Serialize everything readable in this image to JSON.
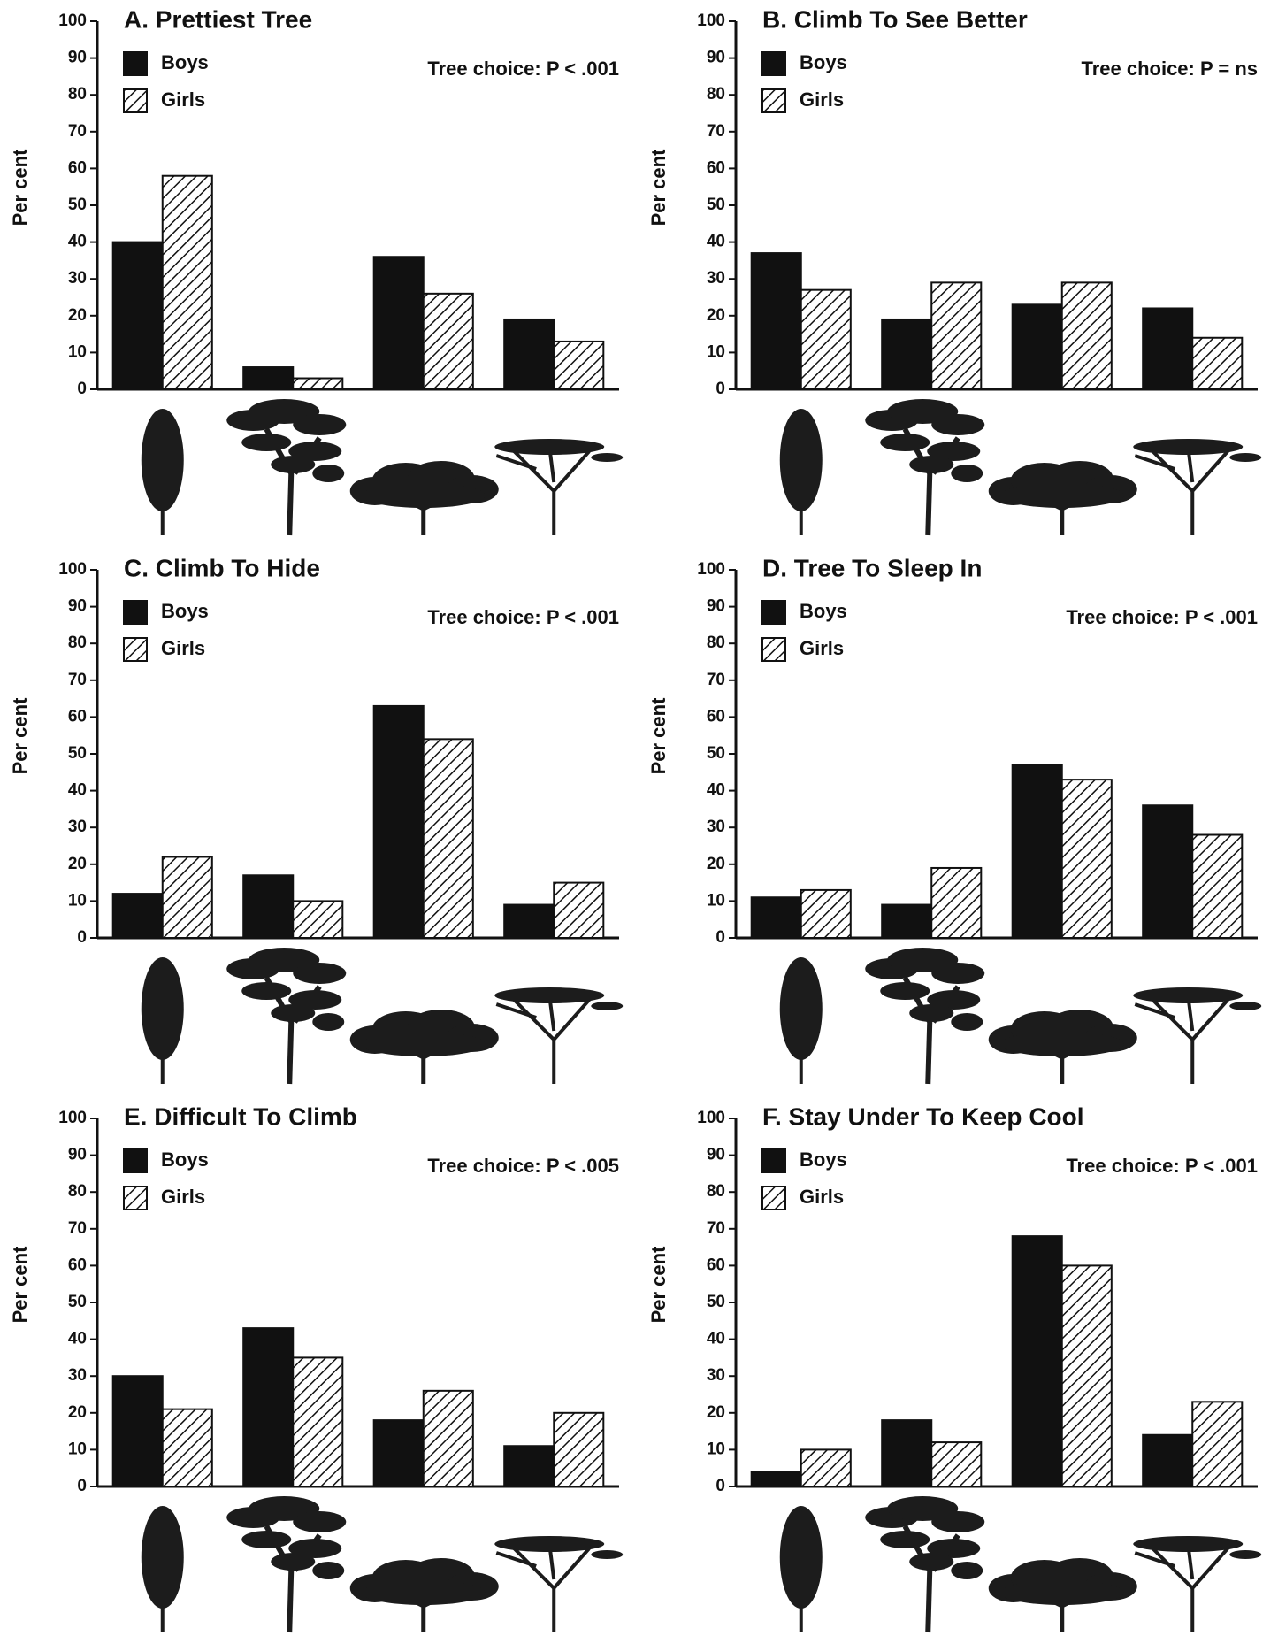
{
  "chart_data": [
    {
      "type": "bar",
      "title": "A.  Prettiest  Tree",
      "annotation": "Tree choice: P < .001",
      "ylabel": "Per cent",
      "categories": [
        null,
        null,
        null,
        null
      ],
      "series": [
        {
          "name": "Boys",
          "color": "#111111",
          "hatch": false,
          "values": [
            40,
            6,
            36,
            19
          ]
        },
        {
          "name": "Girls",
          "color": "#111111",
          "hatch": true,
          "values": [
            58,
            3,
            26,
            13
          ]
        }
      ],
      "ylim": [
        0,
        100
      ],
      "yticks": [
        0,
        10,
        20,
        30,
        40,
        50,
        60,
        70,
        80,
        90,
        100
      ],
      "grid": false
    },
    {
      "type": "bar",
      "title": "B.  Climb  To  See  Better",
      "annotation": "Tree choice: P = ns",
      "ylabel": "Per cent",
      "categories": [
        null,
        null,
        null,
        null
      ],
      "series": [
        {
          "name": "Boys",
          "color": "#111111",
          "hatch": false,
          "values": [
            37,
            19,
            23,
            22
          ]
        },
        {
          "name": "Girls",
          "color": "#111111",
          "hatch": true,
          "values": [
            27,
            29,
            29,
            14
          ]
        }
      ],
      "ylim": [
        0,
        100
      ],
      "yticks": [
        0,
        10,
        20,
        30,
        40,
        50,
        60,
        70,
        80,
        90,
        100
      ],
      "grid": false
    },
    {
      "type": "bar",
      "title": "C.  Climb  To  Hide",
      "annotation": "Tree choice: P < .001",
      "ylabel": "Per cent",
      "categories": [
        null,
        null,
        null,
        null
      ],
      "series": [
        {
          "name": "Boys",
          "color": "#111111",
          "hatch": false,
          "values": [
            12,
            17,
            63,
            9
          ]
        },
        {
          "name": "Girls",
          "color": "#111111",
          "hatch": true,
          "values": [
            22,
            10,
            54,
            15
          ]
        }
      ],
      "ylim": [
        0,
        100
      ],
      "yticks": [
        0,
        10,
        20,
        30,
        40,
        50,
        60,
        70,
        80,
        90,
        100
      ],
      "grid": false
    },
    {
      "type": "bar",
      "title": "D.  Tree  To  Sleep  In",
      "annotation": "Tree choice: P < .001",
      "ylabel": "Per cent",
      "categories": [
        null,
        null,
        null,
        null
      ],
      "series": [
        {
          "name": "Boys",
          "color": "#111111",
          "hatch": false,
          "values": [
            11,
            9,
            47,
            36
          ]
        },
        {
          "name": "Girls",
          "color": "#111111",
          "hatch": true,
          "values": [
            13,
            19,
            43,
            28
          ]
        }
      ],
      "ylim": [
        0,
        100
      ],
      "yticks": [
        0,
        10,
        20,
        30,
        40,
        50,
        60,
        70,
        80,
        90,
        100
      ],
      "grid": false
    },
    {
      "type": "bar",
      "title": "E.  Difficult  To  Climb",
      "annotation": "Tree choice: P < .005",
      "ylabel": "Per cent",
      "categories": [
        null,
        null,
        null,
        null
      ],
      "series": [
        {
          "name": "Boys",
          "color": "#111111",
          "hatch": false,
          "values": [
            30,
            43,
            18,
            11
          ]
        },
        {
          "name": "Girls",
          "color": "#111111",
          "hatch": true,
          "values": [
            21,
            35,
            26,
            20
          ]
        }
      ],
      "ylim": [
        0,
        100
      ],
      "yticks": [
        0,
        10,
        20,
        30,
        40,
        50,
        60,
        70,
        80,
        90,
        100
      ],
      "grid": false
    },
    {
      "type": "bar",
      "title": "F.  Stay  Under  To  Keep  Cool",
      "annotation": "Tree choice: P < .001",
      "ylabel": "Per cent",
      "categories": [
        null,
        null,
        null,
        null
      ],
      "series": [
        {
          "name": "Boys",
          "color": "#111111",
          "hatch": false,
          "values": [
            4,
            18,
            68,
            14
          ]
        },
        {
          "name": "Girls",
          "color": "#111111",
          "hatch": true,
          "values": [
            10,
            12,
            60,
            23
          ]
        }
      ],
      "ylim": [
        0,
        100
      ],
      "yticks": [
        0,
        10,
        20,
        30,
        40,
        50,
        60,
        70,
        80,
        90,
        100
      ],
      "grid": false
    }
  ]
}
